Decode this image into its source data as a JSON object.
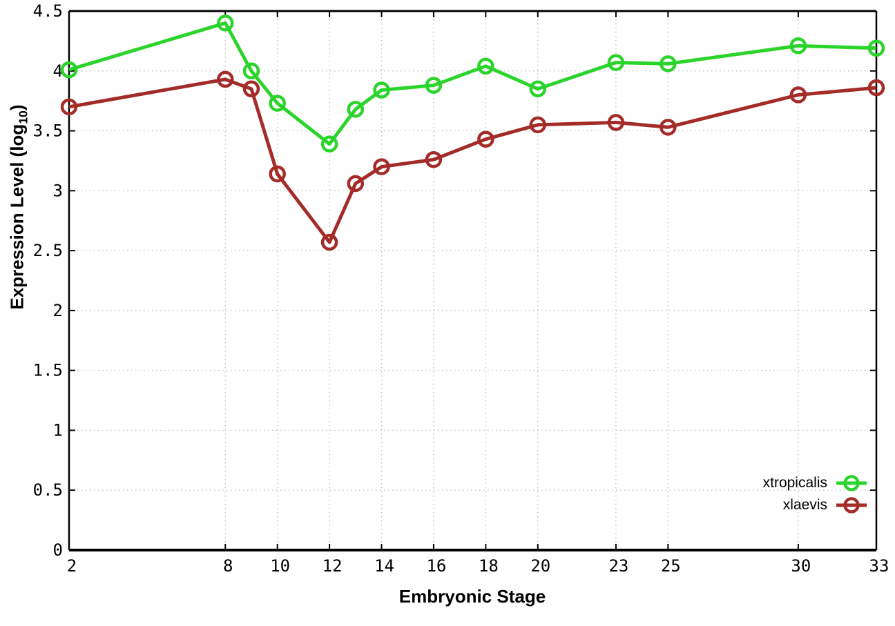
{
  "chart_data": {
    "type": "line",
    "title": "",
    "xlabel": "Embryonic Stage",
    "ylabel": "Expression Level (log10)",
    "ylabel_parts": {
      "pre": "Expression Level (log",
      "sub": "10",
      "post": ")"
    },
    "x": [
      2,
      8,
      9,
      10,
      12,
      13,
      14,
      16,
      18,
      20,
      23,
      25,
      30,
      33
    ],
    "series": [
      {
        "name": "xtropicalis",
        "color": "#2bd42b",
        "marker": "open-circle",
        "values": [
          4.01,
          4.4,
          4.0,
          3.73,
          3.39,
          3.68,
          3.84,
          3.88,
          4.04,
          3.85,
          4.07,
          4.06,
          4.21,
          4.19
        ]
      },
      {
        "name": "xlaevis",
        "color": "#a32c29",
        "marker": "open-circle",
        "values": [
          3.7,
          3.93,
          3.85,
          3.14,
          2.57,
          3.06,
          3.2,
          3.26,
          3.43,
          3.55,
          3.57,
          3.53,
          3.8,
          3.86
        ]
      }
    ],
    "xlim": [
      2,
      33
    ],
    "ylim": [
      0,
      4.5
    ],
    "xticks": [
      2,
      8,
      10,
      12,
      14,
      16,
      18,
      20,
      23,
      25,
      30,
      33
    ],
    "yticks": [
      "0",
      "0.5",
      "1",
      "1.5",
      "2",
      "2.5",
      "3",
      "3.5",
      "4",
      "4.5"
    ],
    "grid": true,
    "legend_position": "bottom-right"
  },
  "colors": {
    "background": "#ffffff",
    "axis": "#000000",
    "grid": "#b9b9b9",
    "text": "#000000",
    "xtropicalis": "#2bd42b",
    "xlaevis": "#a32c29"
  }
}
